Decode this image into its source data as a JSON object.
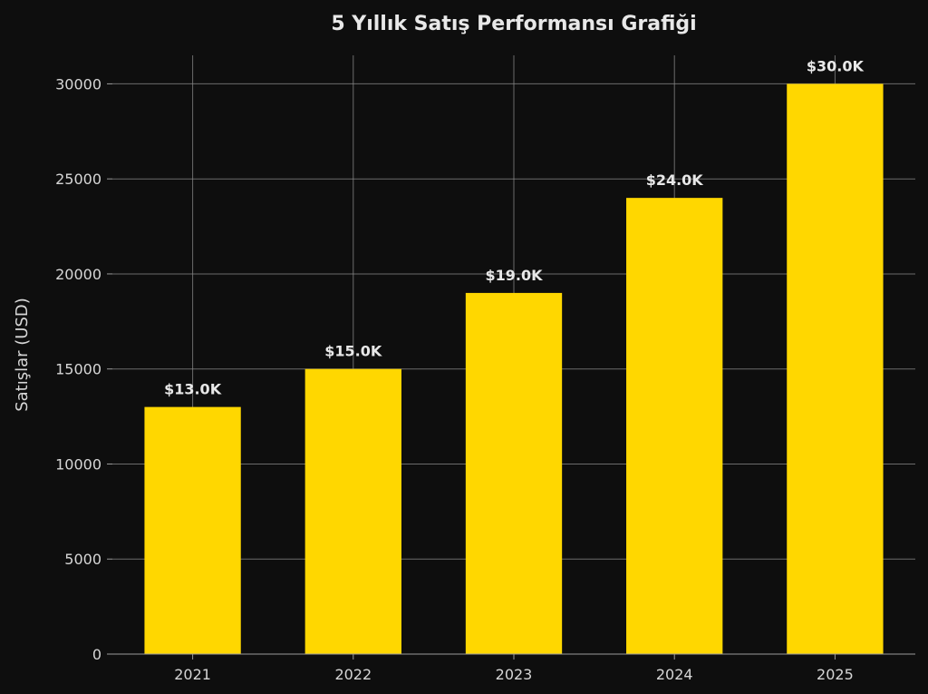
{
  "chart_data": {
    "type": "bar",
    "title": "5 Yıllık Satış Performansı Grafiği",
    "xlabel": "",
    "ylabel": "Satışlar (USD)",
    "categories": [
      "2021",
      "2022",
      "2023",
      "2024",
      "2025"
    ],
    "values": [
      13000,
      15000,
      19000,
      24000,
      30000
    ],
    "data_labels": [
      "$13.0K",
      "$15.0K",
      "$19.0K",
      "$24.0K",
      "$30.0K"
    ],
    "yticks": [
      0,
      5000,
      10000,
      15000,
      20000,
      25000,
      30000
    ],
    "ylim": [
      0,
      31500
    ],
    "grid": true,
    "colors": {
      "background": "#0e0e0e",
      "bar": "#ffd700",
      "text": "#e8e8e8",
      "grid": "#8a8a8a"
    }
  }
}
